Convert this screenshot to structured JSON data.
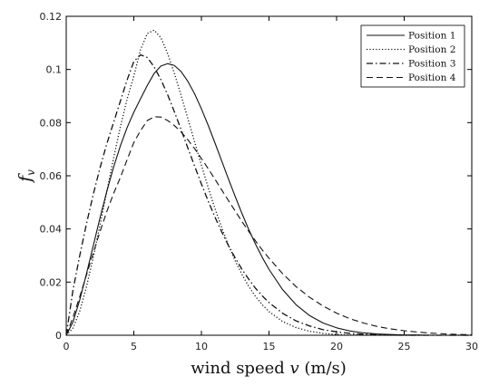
{
  "chart_data": {
    "type": "line",
    "xlabel_prefix": "wind speed ",
    "xlabel_var": "v",
    "xlabel_suffix": " (m/s)",
    "ylabel_main": "f",
    "ylabel_sub": "v",
    "xlim": [
      0,
      30
    ],
    "ylim": [
      0,
      0.12
    ],
    "xticks": [
      0,
      5,
      10,
      15,
      20,
      25,
      30
    ],
    "yticks": [
      0,
      0.02,
      0.04,
      0.06,
      0.08,
      0.1,
      0.12
    ],
    "ytick_labels": [
      "0",
      "0.02",
      "0.04",
      "0.06",
      "0.08",
      "0.1",
      "0.12"
    ],
    "grid": false,
    "legend_position": "top-right",
    "x": [
      0,
      0.5,
      1,
      1.5,
      2,
      2.5,
      3,
      3.5,
      4,
      4.5,
      5,
      5.5,
      6,
      6.5,
      7,
      7.5,
      8,
      8.5,
      9,
      9.5,
      10,
      10.5,
      11,
      11.5,
      12,
      12.5,
      13,
      13.5,
      14,
      14.5,
      15,
      16,
      17,
      18,
      19,
      20,
      21,
      22,
      23,
      24,
      25,
      26,
      27,
      28,
      29,
      30
    ],
    "series": [
      {
        "name": "Position 1",
        "style": "solid",
        "values": [
          0,
          0.005,
          0.0133,
          0.0232,
          0.0337,
          0.0442,
          0.0541,
          0.0632,
          0.0712,
          0.0781,
          0.0839,
          0.089,
          0.094,
          0.0985,
          0.1013,
          0.1022,
          0.1015,
          0.0992,
          0.0955,
          0.0908,
          0.0852,
          0.079,
          0.0724,
          0.0656,
          0.0588,
          0.0522,
          0.0458,
          0.0398,
          0.0343,
          0.0293,
          0.0248,
          0.0172,
          0.0115,
          0.0074,
          0.0046,
          0.0028,
          0.0016,
          0.0009,
          0.0005,
          0.0003,
          0.0001,
          0.0001,
          0,
          0,
          0,
          0
        ]
      },
      {
        "name": "Position 2",
        "style": "dotted",
        "values": [
          0,
          0.0027,
          0.0091,
          0.0183,
          0.0293,
          0.0415,
          0.0541,
          0.0666,
          0.0783,
          0.0888,
          0.0975,
          0.1075,
          0.1135,
          0.1148,
          0.112,
          0.106,
          0.0985,
          0.0902,
          0.0815,
          0.0727,
          0.064,
          0.0556,
          0.0477,
          0.0405,
          0.0339,
          0.028,
          0.0229,
          0.0184,
          0.0146,
          0.0115,
          0.0089,
          0.0052,
          0.0029,
          0.0015,
          0.0007,
          0.0003,
          0.0001,
          0.0001,
          0,
          0,
          0,
          0,
          0,
          0,
          0,
          0
        ]
      },
      {
        "name": "Position 3",
        "style": "dashdot",
        "values": [
          0,
          0.017,
          0.03,
          0.042,
          0.053,
          0.063,
          0.072,
          0.08,
          0.088,
          0.096,
          0.103,
          0.1055,
          0.1045,
          0.101,
          0.0962,
          0.0905,
          0.0841,
          0.0773,
          0.0704,
          0.0636,
          0.0569,
          0.0505,
          0.0445,
          0.0389,
          0.0337,
          0.0291,
          0.0248,
          0.0211,
          0.0177,
          0.0148,
          0.0123,
          0.0083,
          0.0054,
          0.0035,
          0.0021,
          0.0013,
          0.0007,
          0.0004,
          0.0002,
          0.0001,
          0,
          0,
          0,
          0,
          0,
          0
        ]
      },
      {
        "name": "Position 4",
        "style": "dashed",
        "values": [
          0,
          0.0068,
          0.0145,
          0.0227,
          0.031,
          0.039,
          0.0465,
          0.0533,
          0.0593,
          0.066,
          0.0725,
          0.077,
          0.0808,
          0.0822,
          0.0821,
          0.0808,
          0.0789,
          0.0765,
          0.0735,
          0.0702,
          0.0665,
          0.0627,
          0.0587,
          0.0547,
          0.0507,
          0.0467,
          0.0428,
          0.0391,
          0.0355,
          0.0321,
          0.029,
          0.0232,
          0.0183,
          0.0143,
          0.011,
          0.0083,
          0.0062,
          0.0046,
          0.0033,
          0.0024,
          0.0017,
          0.0012,
          0.0008,
          0.0005,
          0.0003,
          0.0002
        ]
      }
    ]
  }
}
